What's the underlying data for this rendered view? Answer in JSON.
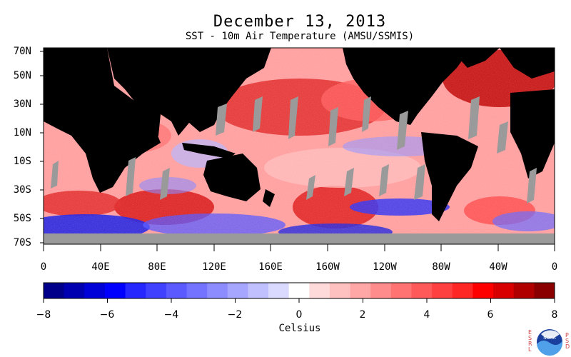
{
  "map": {
    "title": "December 13, 2013",
    "subtitle": "SST - 10m Air Temperature (AMSU/SSMIS)",
    "lat_labels": [
      "70N",
      "50N",
      "30N",
      "10N",
      "10S",
      "30S",
      "50S",
      "70S"
    ],
    "lon_labels": [
      "0",
      "40E",
      "80E",
      "120E",
      "160E",
      "160W",
      "120W",
      "80W",
      "40W",
      "0"
    ],
    "colors": {
      "ocean_warm": "#e8443e",
      "ocean_cool": "#3c5cff",
      "land": "#000000",
      "missing": "#9a9a9a"
    }
  },
  "colorbar": {
    "title": "Celsius",
    "tick_labels": [
      "−8",
      "−6",
      "−4",
      "−2",
      "0",
      "2",
      "4",
      "6",
      "8"
    ],
    "min": -8,
    "max": 8,
    "colors": [
      "#00008a",
      "#0000b0",
      "#0000d8",
      "#0000ff",
      "#2626ff",
      "#4040ff",
      "#5a5aff",
      "#7373ff",
      "#8c8cff",
      "#a6a6ff",
      "#c0c0ff",
      "#dadaff",
      "#ffffff",
      "#ffdada",
      "#ffc0c0",
      "#ffa6a6",
      "#ff8c8c",
      "#ff7373",
      "#ff5a5a",
      "#ff4040",
      "#ff2626",
      "#ff0000",
      "#d80000",
      "#b00000",
      "#8a0000"
    ]
  },
  "logo": {
    "left_text": "ESRL",
    "right_text": "PSD",
    "center_text": "NOAA"
  }
}
